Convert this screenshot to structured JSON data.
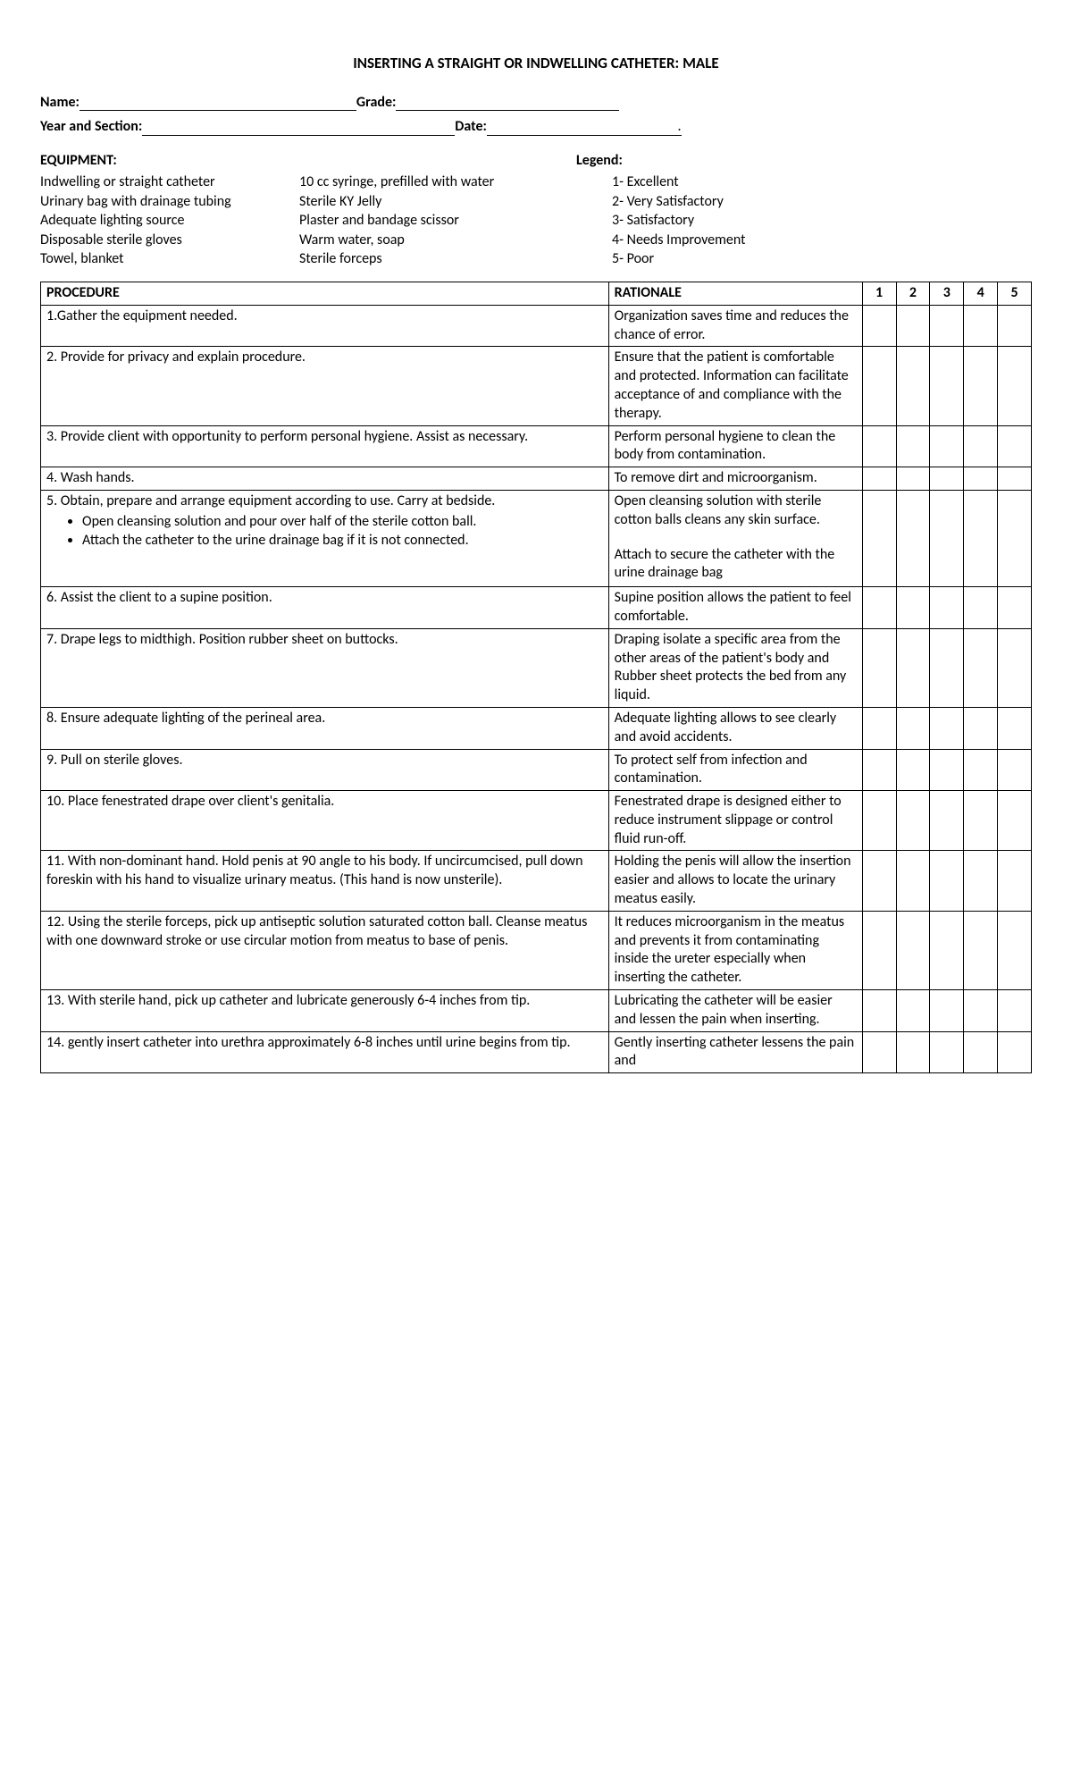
{
  "title": "INSERTING A STRAIGHT OR INDWELLING CATHETER: MALE",
  "form": {
    "name_label": "Name:",
    "grade_label": "Grade:",
    "year_label": "Year and Section:",
    "date_label": "Date:"
  },
  "equipment": {
    "heading": "EQUIPMENT:",
    "col1": [
      "Indwelling or straight catheter",
      "Urinary bag with drainage tubing",
      "Adequate lighting source",
      "Disposable sterile gloves",
      "Towel, blanket"
    ],
    "col2": [
      "10 cc syringe, prefilled with water",
      "Sterile KY Jelly",
      "Plaster and bandage scissor",
      "Warm water, soap",
      "Sterile forceps"
    ]
  },
  "legend": {
    "heading": "Legend:",
    "items": [
      "1- Excellent",
      "2- Very Satisfactory",
      "3- Satisfactory",
      "4- Needs Improvement",
      "5- Poor"
    ]
  },
  "table": {
    "headers": {
      "procedure": "PROCEDURE",
      "rationale": "RATIONALE",
      "s1": "1",
      "s2": "2",
      "s3": "3",
      "s4": "4",
      "s5": "5"
    },
    "rows": [
      {
        "procedure": "1.Gather the equipment needed.",
        "rationale": "Organization saves time and reduces the chance of error."
      },
      {
        "procedure": "2. Provide for privacy and explain procedure.",
        "rationale": "Ensure that the patient is comfortable and protected. Information can facilitate acceptance of and compliance with the therapy."
      },
      {
        "procedure": "3. Provide client with opportunity to perform personal hygiene. Assist as necessary.",
        "rationale": "Perform personal hygiene to clean the body from contamination."
      },
      {
        "procedure": "4. Wash hands.",
        "rationale": "To remove dirt and microorganism."
      },
      {
        "procedure_main": "5. Obtain, prepare and arrange equipment according to use. Carry at bedside.",
        "procedure_bullets": [
          "Open cleansing solution and pour over half of the sterile cotton ball.",
          "Attach the catheter to the urine drainage bag if it is not connected."
        ],
        "rationale_parts": [
          "Open cleansing solution with sterile cotton balls cleans any skin surface.",
          "Attach to secure the catheter with the urine drainage bag"
        ]
      },
      {
        "procedure": "6. Assist the client to a supine position.",
        "rationale": "Supine position allows the patient to feel comfortable."
      },
      {
        "procedure": "7. Drape legs to midthigh. Position rubber sheet on buttocks.",
        "rationale": "Draping isolate a specific area from the other areas of the patient's body and Rubber sheet protects the bed from any liquid."
      },
      {
        "procedure": "8. Ensure adequate lighting of the perineal area.",
        "rationale": "Adequate lighting allows to see clearly and avoid accidents."
      },
      {
        "procedure": "9. Pull on sterile gloves.",
        "rationale": "To protect self from infection and contamination."
      },
      {
        "procedure": "10. Place fenestrated drape over client's genitalia.",
        "rationale": "Fenestrated drape is designed either to reduce instrument slippage or control fluid run-off."
      },
      {
        "procedure": "11. With non-dominant hand. Hold penis at 90 angle to his body. If uncircumcised, pull down foreskin with his hand to visualize urinary meatus. (This hand is now unsterile).",
        "rationale": "Holding the penis will allow the insertion easier and allows to locate the urinary meatus easily."
      },
      {
        "procedure": "12. Using the sterile forceps, pick up antiseptic solution saturated cotton ball. Cleanse meatus with one downward stroke or use circular motion from meatus to base of penis.",
        "rationale": "It reduces microorganism in the meatus and prevents it from contaminating inside the ureter especially when inserting the catheter."
      },
      {
        "procedure": "13. With sterile hand, pick up catheter and lubricate generously 6-4 inches from tip.",
        "rationale": "Lubricating the catheter will be easier and lessen the pain when inserting."
      },
      {
        "procedure": "14. gently insert catheter into urethra approximately 6-8 inches until urine begins from tip.",
        "rationale": "Gently inserting catheter lessens the pain and"
      }
    ]
  }
}
